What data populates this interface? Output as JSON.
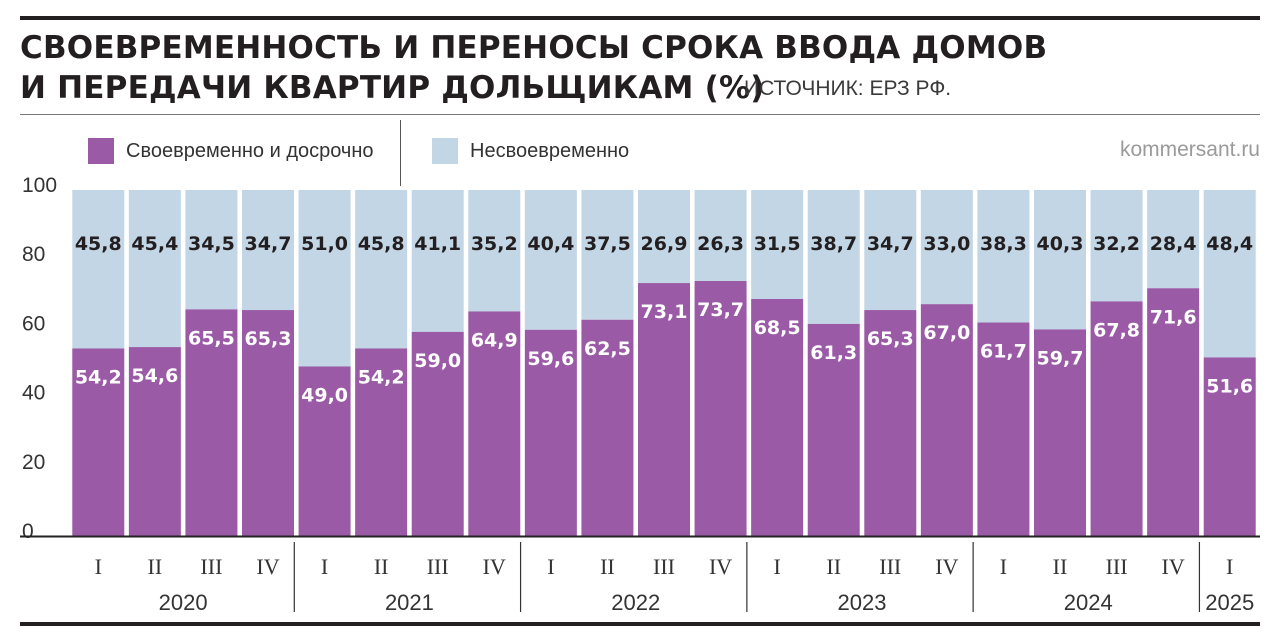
{
  "header": {
    "title_line1": "СВОЕВРЕМЕННОСТЬ И ПЕРЕНОСЫ СРОКА ВВОДА ДОМОВ",
    "title_line2": "И ПЕРЕДАЧИ КВАРТИР ДОЛЬЩИКАМ (%)",
    "source": "ИСТОЧНИК: ЕРЗ РФ.",
    "site": "kommersant.ru"
  },
  "colors": {
    "on_time": "#9a5aa6",
    "late": "#c3d6e6",
    "text": "#231f20"
  },
  "chart_data": {
    "type": "bar",
    "stacked": true,
    "title": "СВОЕВРЕМЕННОСТЬ И ПЕРЕНОСЫ СРОКА ВВОДА ДОМОВ И ПЕРЕДАЧИ КВАРТИР ДОЛЬЩИКАМ (%)",
    "ylim": [
      0,
      100
    ],
    "yticks": [
      "0",
      "20",
      "40",
      "60",
      "80",
      "100"
    ],
    "legend": [
      "Своевременно и досрочно",
      "Несвоевременно"
    ],
    "categories": [
      "I",
      "II",
      "III",
      "IV",
      "I",
      "II",
      "III",
      "IV",
      "I",
      "II",
      "III",
      "IV",
      "I",
      "II",
      "III",
      "IV",
      "I",
      "II",
      "III",
      "IV",
      "I"
    ],
    "years": [
      {
        "label": "2020",
        "count": 4
      },
      {
        "label": "2021",
        "count": 4
      },
      {
        "label": "2022",
        "count": 4
      },
      {
        "label": "2023",
        "count": 4
      },
      {
        "label": "2024",
        "count": 4
      },
      {
        "label": "2025",
        "count": 1
      }
    ],
    "series": [
      {
        "name": "Своевременно и досрочно",
        "values": [
          54.2,
          54.6,
          65.5,
          65.3,
          49.0,
          54.2,
          59.0,
          64.9,
          59.6,
          62.5,
          73.1,
          73.7,
          68.5,
          61.3,
          65.3,
          67.0,
          61.7,
          59.7,
          67.8,
          71.6,
          51.6
        ],
        "labels": [
          "54,2",
          "54,6",
          "65,5",
          "65,3",
          "49,0",
          "54,2",
          "59,0",
          "64,9",
          "59,6",
          "62,5",
          "73,1",
          "73,7",
          "68,5",
          "61,3",
          "65,3",
          "67,0",
          "61,7",
          "59,7",
          "67,8",
          "71,6",
          "51,6"
        ]
      },
      {
        "name": "Несвоевременно",
        "values": [
          45.8,
          45.4,
          34.5,
          34.7,
          51.0,
          45.8,
          41.1,
          35.2,
          40.4,
          37.5,
          26.9,
          26.3,
          31.5,
          38.7,
          34.7,
          33.0,
          38.3,
          40.3,
          32.2,
          28.4,
          48.4
        ],
        "labels": [
          "45,8",
          "45,4",
          "34,5",
          "34,7",
          "51,0",
          "45,8",
          "41,1",
          "35,2",
          "40,4",
          "37,5",
          "26,9",
          "26,3",
          "31,5",
          "38,7",
          "34,7",
          "33,0",
          "38,3",
          "40,3",
          "32,2",
          "28,4",
          "48,4"
        ]
      }
    ]
  }
}
